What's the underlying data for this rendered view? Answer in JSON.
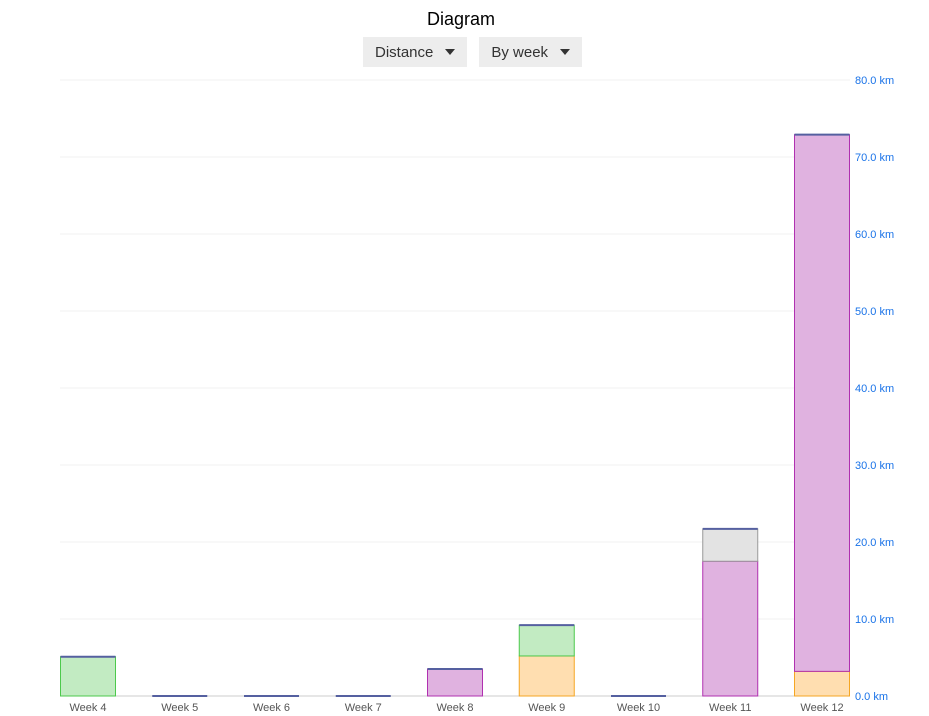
{
  "title": "Diagram",
  "controls": {
    "metric": "Distance",
    "period": "By week"
  },
  "chart_data": {
    "type": "bar",
    "stacked": true,
    "categories": [
      "Week 4",
      "Week 5",
      "Week 6",
      "Week 7",
      "Week 8",
      "Week 9",
      "Week 10",
      "Week 11",
      "Week 12"
    ],
    "series": [
      {
        "color": "#ffdeb0",
        "stroke": "#f5a623",
        "values": [
          0,
          0,
          0,
          0,
          0,
          5.2,
          0,
          0,
          3.2
        ]
      },
      {
        "color": "#e0b2e0",
        "stroke": "#b030b0",
        "values": [
          0,
          0,
          0,
          0,
          3.5,
          0,
          0,
          17.5,
          69.7
        ]
      },
      {
        "color": "#c2ebc2",
        "stroke": "#4cc94c",
        "values": [
          5.1,
          0,
          0,
          0,
          0,
          4.0,
          0,
          0,
          0
        ]
      },
      {
        "color": "#e3e3e3",
        "stroke": "#999999",
        "values": [
          0,
          0,
          0,
          0,
          0,
          0,
          0,
          4.2,
          0
        ]
      }
    ],
    "top_line_color": "#5560a0",
    "yticks": [
      "0.0 km",
      "10.0 km",
      "20.0 km",
      "30.0 km",
      "40.0 km",
      "50.0 km",
      "60.0 km",
      "70.0 km",
      "80.0 km"
    ],
    "ylim": [
      0,
      80
    ],
    "yaxis_position": "right",
    "grid": true
  }
}
